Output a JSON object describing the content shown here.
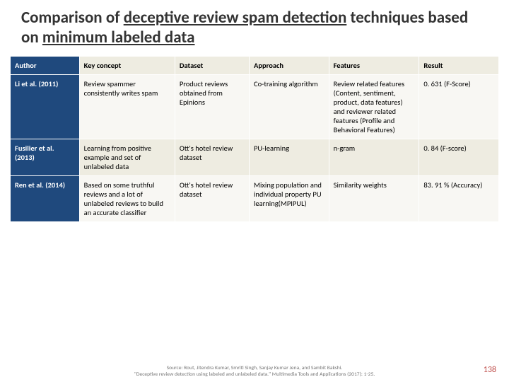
{
  "title": {
    "pre": "Comparison of ",
    "u1": "deceptive review spam detection",
    "mid": " techniques based on ",
    "u2": "minimum labeled data"
  },
  "table": {
    "headers": [
      "Author",
      "Key concept",
      "Dataset",
      "Approach",
      "Features",
      "Result"
    ],
    "rows": [
      {
        "author": "Li et al. (2011)",
        "concept": "Review spammer consistently writes spam",
        "dataset": "Product reviews obtained from Epinions",
        "approach": "Co-training algorithm",
        "features": "Review related features (Content, sentiment, product, data features) and reviewer related features (Profile and Behavioral Features)",
        "result": "0. 631 (F-Score)"
      },
      {
        "author": "Fusilier et al. (2013)",
        "concept": "Learning from positive example and set of unlabeled data",
        "dataset": "Ott's hotel review dataset",
        "approach": "PU-learning",
        "features": "n-gram",
        "result": "0. 84 (F-score)"
      },
      {
        "author": "Ren et al. (2014)",
        "concept": "Based on some truthful reviews and a lot of unlabeled reviews to build an accurate classifier",
        "dataset": "Ott's hotel review dataset",
        "approach": "Mixing population and individual property PU learning(MPIPUL)",
        "features": "Similarity weights",
        "result": "83. 91 % (Accuracy)"
      }
    ]
  },
  "footer": {
    "line1": "Source: Rout, Jitendra Kumar, Smriti Singh, Sanjay Kumar Jena, and Sambit Bakshi.",
    "line2": "\"Deceptive review detection using labeled and unlabeled data.\" Multimedia Tools and Applications (2017): 1-25."
  },
  "page_number": "138",
  "colors": {
    "header_bg": "#eeece1",
    "first_col_bg": "#1f497d",
    "row_alt_bg": "#f8f7f3",
    "pagenum_color": "#c0504d"
  }
}
